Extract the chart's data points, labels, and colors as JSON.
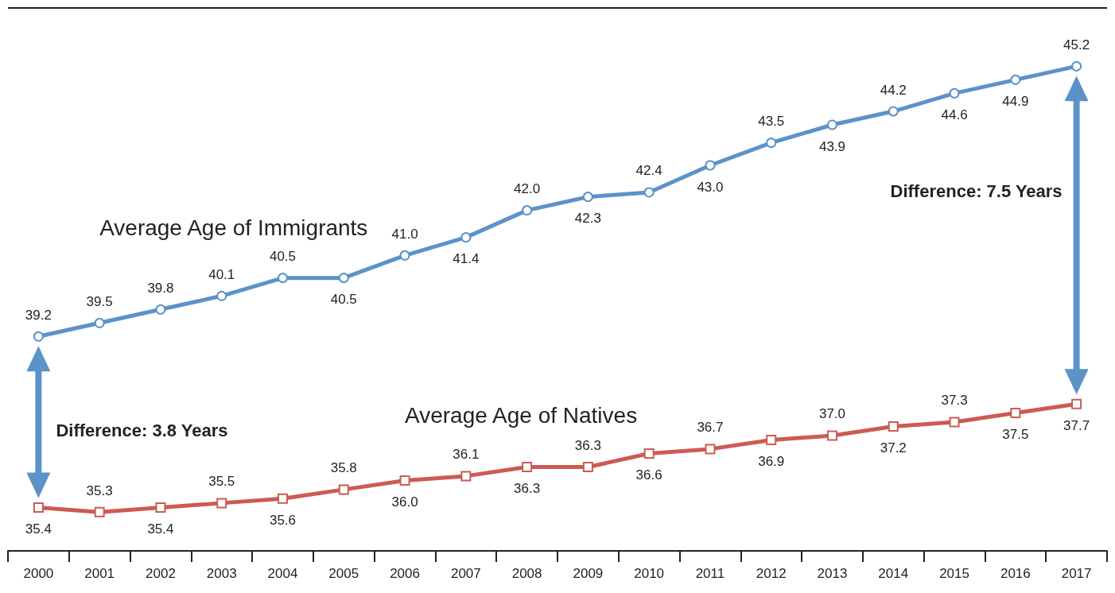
{
  "chart_data": {
    "type": "line",
    "categories": [
      "2000",
      "2001",
      "2002",
      "2003",
      "2004",
      "2005",
      "2006",
      "2007",
      "2008",
      "2009",
      "2010",
      "2011",
      "2012",
      "2013",
      "2014",
      "2015",
      "2016",
      "2017"
    ],
    "series": [
      {
        "name": "Average Age of Immigrants",
        "color": "#5b93c9",
        "marker": "circle",
        "values": [
          39.2,
          39.5,
          39.8,
          40.1,
          40.5,
          40.5,
          41.0,
          41.4,
          42.0,
          42.3,
          42.4,
          43.0,
          43.5,
          43.9,
          44.2,
          44.6,
          44.9,
          45.2
        ],
        "value_labels": [
          "39.2",
          "39.5",
          "39.8",
          "40.1",
          "40.5",
          "40.5",
          "41.0",
          "41.4",
          "42.0",
          "42.3",
          "42.4",
          "43.0",
          "43.5",
          "43.9",
          "44.2",
          "44.6",
          "44.9",
          "45.2"
        ]
      },
      {
        "name": "Average Age of Natives",
        "color": "#cc5b52",
        "marker": "square",
        "values": [
          35.4,
          35.3,
          35.4,
          35.5,
          35.6,
          35.8,
          36.0,
          36.1,
          36.3,
          36.3,
          36.6,
          36.7,
          36.9,
          37.0,
          37.2,
          37.3,
          37.5,
          37.7
        ],
        "value_labels": [
          "35.4",
          "35.3",
          "35.4",
          "35.5",
          "35.6",
          "35.8",
          "36.0",
          "36.1",
          "36.3",
          "36.3",
          "36.6",
          "36.7",
          "36.9",
          "37.0",
          "37.2",
          "37.3",
          "37.5",
          "37.7"
        ]
      }
    ],
    "annotations": [
      "Difference: 3.8 Years",
      "Difference: 7.5 Years"
    ],
    "grid": false,
    "legend": false
  }
}
